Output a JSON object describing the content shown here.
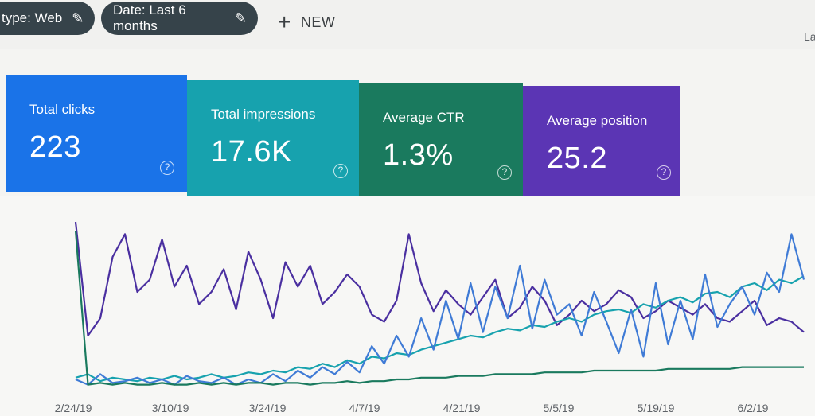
{
  "toolbar": {
    "type_chip_label": "type: Web",
    "date_chip_label": "Date: Last 6 months",
    "new_label": "NEW",
    "last_label": "La"
  },
  "metrics": {
    "clicks": {
      "label": "Total clicks",
      "value": "223",
      "color": "#1a73e8"
    },
    "impressions": {
      "label": "Total impressions",
      "value": "17.6K",
      "color": "#17a2ae"
    },
    "ctr": {
      "label": "Average CTR",
      "value": "1.3%",
      "color": "#1a7a5e"
    },
    "position": {
      "label": "Average position",
      "value": "25.2",
      "color": "#5b35b4"
    }
  },
  "chart_data": {
    "type": "line",
    "title": "",
    "xlabel": "",
    "ylabel": "",
    "x_tick_labels": [
      "2/24/19",
      "3/10/19",
      "3/24/19",
      "4/7/19",
      "4/21/19",
      "5/5/19",
      "5/19/19",
      "6/2/19"
    ],
    "series": [
      {
        "name": "Average position",
        "color": "#4a2fa0",
        "values": [
          95,
          30,
          40,
          75,
          88,
          55,
          62,
          85,
          58,
          70,
          48,
          55,
          68,
          45,
          78,
          62,
          40,
          72,
          58,
          70,
          48,
          55,
          65,
          58,
          42,
          38,
          50,
          88,
          60,
          44,
          56,
          48,
          42,
          52,
          62,
          40,
          46,
          58,
          50,
          36,
          42,
          50,
          44,
          48,
          56,
          52,
          40,
          44,
          50,
          46,
          42,
          48,
          40,
          38,
          44,
          50,
          36,
          40,
          38,
          32
        ]
      },
      {
        "name": "Total impressions",
        "color": "#17a2ae",
        "values": [
          6,
          8,
          4,
          6,
          5,
          4,
          6,
          5,
          7,
          5,
          6,
          8,
          6,
          7,
          9,
          8,
          10,
          9,
          12,
          11,
          14,
          12,
          16,
          14,
          18,
          17,
          20,
          19,
          22,
          24,
          26,
          28,
          30,
          29,
          32,
          34,
          33,
          36,
          35,
          38,
          40,
          38,
          42,
          44,
          45,
          43,
          48,
          46,
          50,
          52,
          49,
          54,
          55,
          52,
          58,
          60,
          56,
          62,
          60,
          64
        ]
      },
      {
        "name": "Total clicks",
        "color": "#3f7bd6",
        "values": [
          5,
          2,
          8,
          3,
          4,
          6,
          3,
          5,
          2,
          7,
          4,
          3,
          6,
          2,
          5,
          3,
          8,
          4,
          10,
          6,
          12,
          8,
          15,
          9,
          24,
          14,
          30,
          18,
          40,
          22,
          50,
          28,
          60,
          32,
          58,
          40,
          70,
          34,
          62,
          42,
          48,
          30,
          55,
          38,
          20,
          45,
          18,
          60,
          25,
          50,
          28,
          65,
          35,
          48,
          58,
          42,
          66,
          55,
          88,
          62
        ]
      },
      {
        "name": "Average CTR",
        "color": "#1a7a5e",
        "values": [
          90,
          2,
          3,
          2,
          3,
          2,
          2,
          3,
          2,
          2,
          3,
          2,
          3,
          2,
          3,
          3,
          2,
          3,
          3,
          2,
          3,
          3,
          4,
          3,
          4,
          4,
          5,
          5,
          6,
          6,
          6,
          7,
          7,
          7,
          8,
          8,
          8,
          8,
          9,
          9,
          9,
          9,
          10,
          10,
          10,
          10,
          10,
          10,
          11,
          11,
          11,
          11,
          11,
          11,
          12,
          12,
          12,
          12,
          12,
          12
        ]
      }
    ]
  }
}
